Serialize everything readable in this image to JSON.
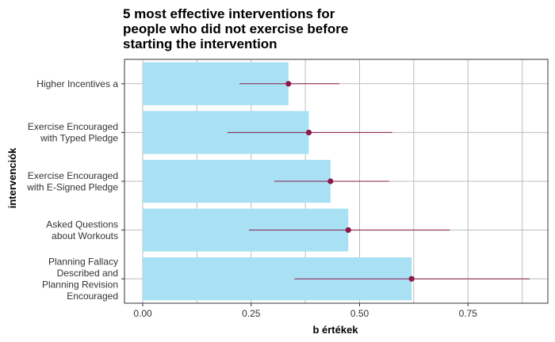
{
  "chart_data": {
    "type": "bar",
    "orientation": "horizontal",
    "title_lines": [
      "5 most effective interventions for",
      "people who did not exercise before",
      "starting the intervention"
    ],
    "xlabel": "b értékek",
    "ylabel": "intervenciók",
    "xlim": [
      -0.03,
      0.94
    ],
    "xticks": [
      "0.00",
      "0.25",
      "0.50",
      "0.75"
    ],
    "x_tick_values": [
      0,
      0.25,
      0.5,
      0.75
    ],
    "categories": [
      [
        "Higher Incentives a"
      ],
      [
        "Exercise Encouraged",
        "with Typed Pledge"
      ],
      [
        "Exercise Encouraged",
        "with E-Signed Pledge"
      ],
      [
        "Asked Questions",
        "about Workouts"
      ],
      [
        "Planning Fallacy",
        "Described and",
        "Planning Revision",
        "Encouraged"
      ]
    ],
    "values": [
      0.336,
      0.383,
      0.433,
      0.474,
      0.62
    ],
    "ci_low": [
      0.223,
      0.195,
      0.303,
      0.245,
      0.35
    ],
    "ci_high": [
      0.453,
      0.575,
      0.568,
      0.708,
      0.892
    ],
    "grid": true,
    "colors": {
      "bar": "#a8e1f4",
      "point": "#8b1a4a",
      "errorbar": "#8b1a4a"
    }
  }
}
